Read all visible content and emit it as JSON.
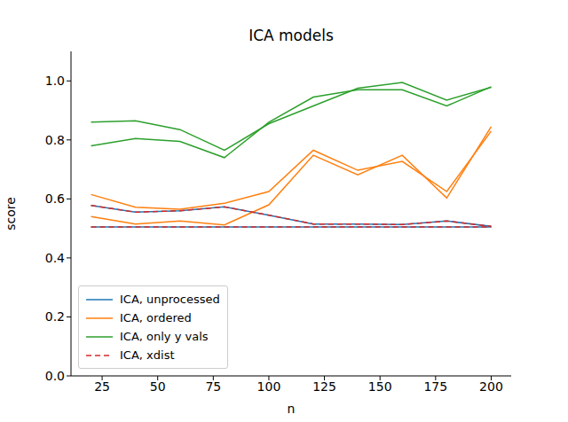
{
  "chart_data": {
    "type": "line",
    "title": "ICA models",
    "x_label": "n",
    "y_label": "score",
    "x": [
      20,
      40,
      60,
      80,
      100,
      120,
      140,
      160,
      180,
      200
    ],
    "xlim": [
      11,
      209
    ],
    "xticks": [
      25,
      50,
      75,
      100,
      125,
      150,
      175,
      200
    ],
    "ylim": [
      0,
      1.1
    ],
    "yticks": [
      {
        "value": 0,
        "label": "0.0"
      },
      {
        "value": 0.2,
        "label": "0.2"
      },
      {
        "value": 0.4,
        "label": "0.4"
      },
      {
        "value": 0.6,
        "label": "0.6"
      },
      {
        "value": 0.8,
        "label": "0.8"
      },
      {
        "value": 1.0,
        "label": "1.0"
      }
    ],
    "grid": false,
    "legend": "lower left",
    "series": [
      {
        "name": "ICA, unprocessed",
        "color": "#1f77b4",
        "line_style": "solid",
        "values": [
          0.578,
          0.555,
          0.56,
          0.573,
          0.545,
          0.515,
          0.515,
          0.513,
          0.525,
          0.507
        ]
      },
      {
        "name": "ICA, unprocessed",
        "color": "#1f77b4",
        "line_style": "solid",
        "values": [
          0.505,
          0.505,
          0.505,
          0.505,
          0.505,
          0.505,
          0.505,
          0.505,
          0.505,
          0.505
        ]
      },
      {
        "name": "ICA, ordered",
        "color": "#ff7f0e",
        "line_style": "solid",
        "values": [
          0.615,
          0.572,
          0.565,
          0.585,
          0.625,
          0.765,
          0.697,
          0.727,
          0.625,
          0.83
        ]
      },
      {
        "name": "ICA, ordered",
        "color": "#ff7f0e",
        "line_style": "solid",
        "values": [
          0.54,
          0.515,
          0.525,
          0.512,
          0.58,
          0.748,
          0.682,
          0.748,
          0.603,
          0.845
        ]
      },
      {
        "name": "ICA, only y vals",
        "color": "#2ca02c",
        "line_style": "solid",
        "values": [
          0.86,
          0.865,
          0.835,
          0.765,
          0.855,
          0.915,
          0.975,
          0.995,
          0.935,
          0.978
        ]
      },
      {
        "name": "ICA, only y vals",
        "color": "#2ca02c",
        "line_style": "solid",
        "values": [
          0.78,
          0.805,
          0.795,
          0.74,
          0.86,
          0.945,
          0.97,
          0.97,
          0.915,
          0.98
        ]
      },
      {
        "name": "ICA, xdist",
        "color": "#d62728",
        "line_style": "dashed",
        "values": [
          0.578,
          0.555,
          0.56,
          0.573,
          0.545,
          0.515,
          0.515,
          0.513,
          0.525,
          0.507
        ]
      },
      {
        "name": "ICA, xdist",
        "color": "#d62728",
        "line_style": "dashed",
        "values": [
          0.505,
          0.505,
          0.505,
          0.505,
          0.505,
          0.505,
          0.505,
          0.505,
          0.505,
          0.505
        ]
      }
    ]
  }
}
